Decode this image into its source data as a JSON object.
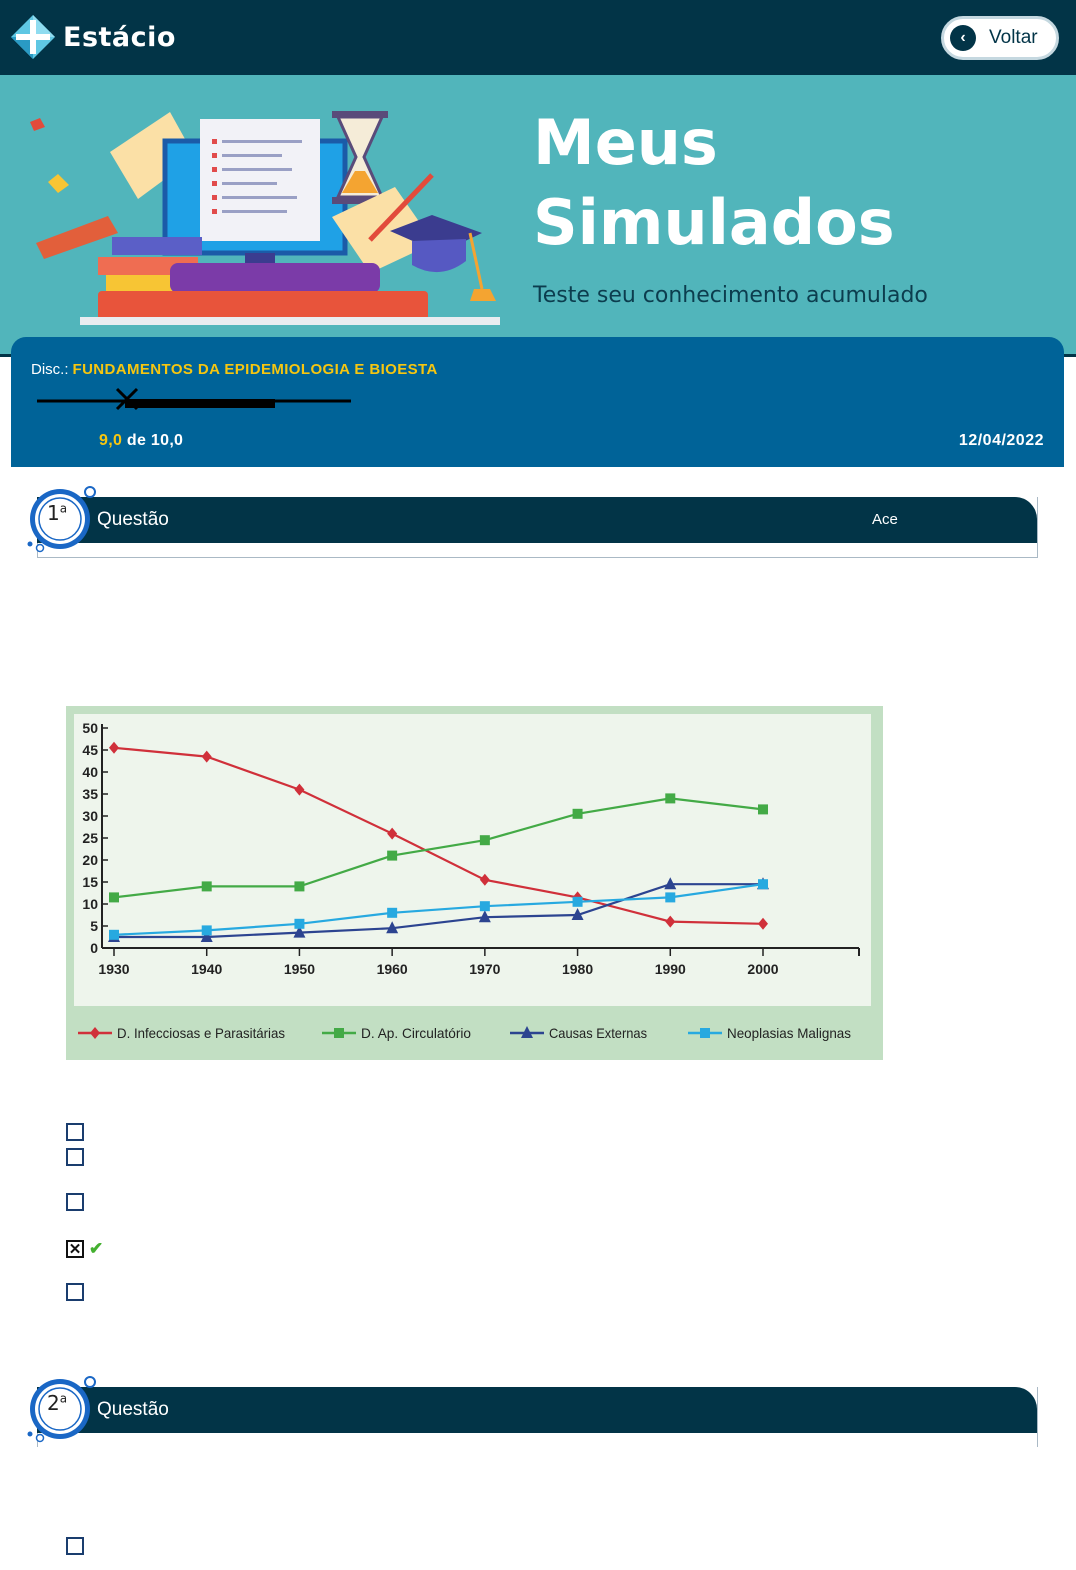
{
  "header": {
    "brand": "Estácio",
    "back_label": "Voltar"
  },
  "hero": {
    "title_line1": "Meus",
    "title_line2": "Simulados",
    "subtitle": "Teste seu conhecimento acumulado"
  },
  "exam": {
    "disc_label": "Disc.:",
    "discipline": "FUNDAMENTOS DA EPIDEMIOLOGIA E BIOESTA",
    "score": "9,0",
    "score_suffix": " de 10,0",
    "date": "12/04/2022"
  },
  "questions": [
    {
      "number": "1",
      "ordinal": "a",
      "label": "Questão",
      "status": "Ace"
    },
    {
      "number": "2",
      "ordinal": "a",
      "label": "Questão",
      "status": ""
    }
  ],
  "q1_options": [
    {
      "checked": false
    },
    {
      "checked": false
    },
    {
      "checked": false
    },
    {
      "checked": true,
      "correct": true
    },
    {
      "checked": false
    }
  ],
  "chart_data": {
    "type": "line",
    "x": [
      1930,
      1940,
      1950,
      1960,
      1970,
      1980,
      1990,
      2000
    ],
    "yticks": [
      0,
      5,
      10,
      15,
      20,
      25,
      30,
      35,
      40,
      45,
      50
    ],
    "ylim": [
      0,
      50
    ],
    "legend_position": "bottom",
    "series": [
      {
        "name": "D. Infecciosas e Parasitárias",
        "color": "#d0303a",
        "marker": "diamond",
        "values": [
          45.5,
          43.5,
          36,
          26,
          15.5,
          11.5,
          6,
          5.5
        ]
      },
      {
        "name": "D. Ap. Circulatório",
        "color": "#43aa46",
        "marker": "square",
        "values": [
          11.5,
          14,
          14,
          21,
          24.5,
          30.5,
          34,
          31.5
        ]
      },
      {
        "name": "Causas Externas",
        "color": "#2c4490",
        "marker": "triangle",
        "values": [
          2.5,
          2.5,
          3.5,
          4.5,
          7,
          7.5,
          14.5,
          14.5
        ]
      },
      {
        "name": "Neoplasias Malignas",
        "color": "#27a9e0",
        "marker": "square",
        "values": [
          3,
          4,
          5.5,
          8,
          9.5,
          10.5,
          11.5,
          14.5
        ]
      }
    ]
  }
}
